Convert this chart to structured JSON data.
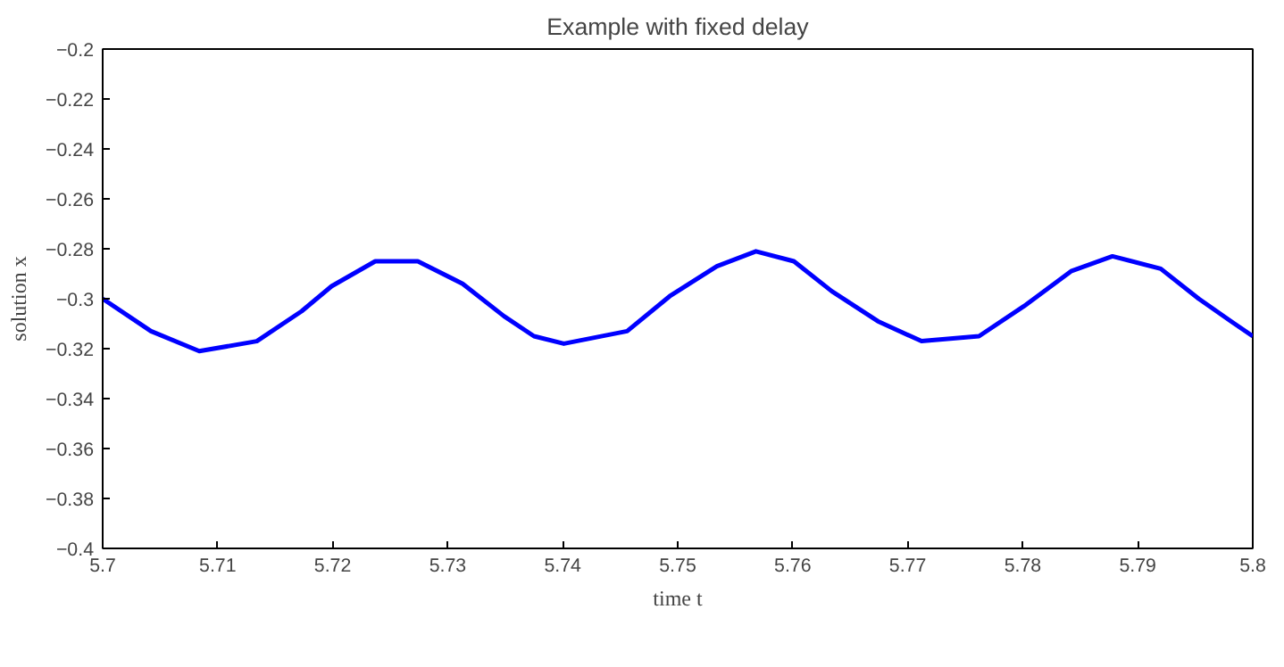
{
  "chart_data": {
    "type": "line",
    "title": "Example with fixed delay",
    "xlabel": "time t",
    "ylabel": "solution x",
    "x": [
      5.7,
      5.7042,
      5.7084,
      5.7134,
      5.7173,
      5.7199,
      5.7237,
      5.7274,
      5.7313,
      5.7349,
      5.7375,
      5.7401,
      5.7456,
      5.7493,
      5.7534,
      5.7568,
      5.7601,
      5.7634,
      5.7674,
      5.7712,
      5.7762,
      5.7801,
      5.7842,
      5.7878,
      5.792,
      5.7953,
      5.7981,
      5.8
    ],
    "series": [
      {
        "color": "#0000ff",
        "values": [
          -0.3,
          -0.313,
          -0.321,
          -0.317,
          -0.305,
          -0.295,
          -0.285,
          -0.285,
          -0.294,
          -0.307,
          -0.315,
          -0.318,
          -0.313,
          -0.299,
          -0.287,
          -0.281,
          -0.285,
          -0.297,
          -0.309,
          -0.317,
          -0.315,
          -0.303,
          -0.289,
          -0.283,
          -0.288,
          -0.3,
          -0.309,
          -0.315
        ]
      }
    ],
    "xlim": [
      5.7,
      5.8
    ],
    "xticks": [
      5.7,
      5.71,
      5.72,
      5.73,
      5.74,
      5.75,
      5.76,
      5.77,
      5.78,
      5.79,
      5.8
    ],
    "ylim": [
      -0.4,
      -0.2
    ],
    "yticks": [
      {
        "value": -0.4,
        "label": "−0.4"
      },
      {
        "value": -0.38,
        "label": "−0.38"
      },
      {
        "value": -0.36,
        "label": "−0.36"
      },
      {
        "value": -0.34,
        "label": "−0.34"
      },
      {
        "value": -0.32,
        "label": "−0.32"
      },
      {
        "value": -0.3,
        "label": "−0.3"
      },
      {
        "value": -0.28,
        "label": "−0.28"
      },
      {
        "value": -0.26,
        "label": "−0.26"
      },
      {
        "value": -0.24,
        "label": "−0.24"
      },
      {
        "value": -0.22,
        "label": "−0.22"
      },
      {
        "value": -0.2,
        "label": "−0.2"
      }
    ],
    "grid": false,
    "marker": "none",
    "line_style": "solid"
  }
}
